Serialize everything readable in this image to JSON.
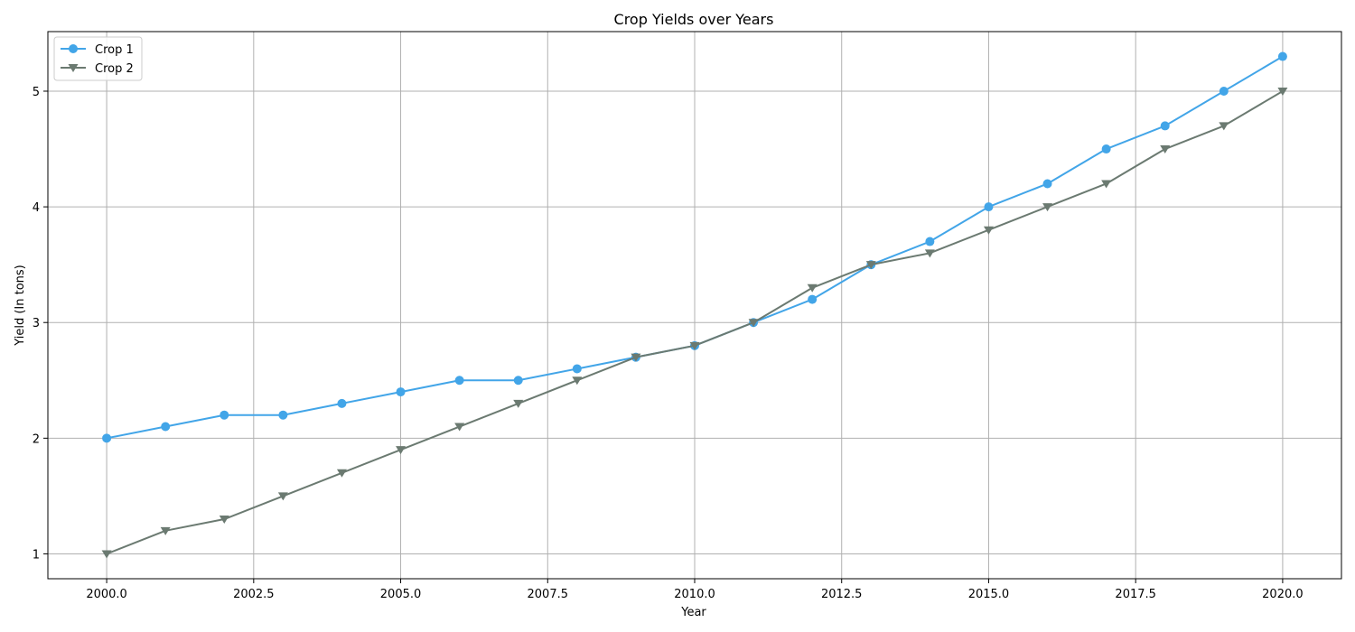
{
  "chart_data": {
    "type": "line",
    "title": "Crop Yields over Years",
    "xlabel": "Year",
    "ylabel": "Yield (In tons)",
    "x": [
      2000,
      2001,
      2002,
      2003,
      2004,
      2005,
      2006,
      2007,
      2008,
      2009,
      2010,
      2011,
      2012,
      2013,
      2014,
      2015,
      2016,
      2017,
      2018,
      2019,
      2020
    ],
    "series": [
      {
        "name": "Crop 1",
        "color": "#42a5e8",
        "marker": "circle",
        "values": [
          2.0,
          2.1,
          2.2,
          2.2,
          2.3,
          2.4,
          2.5,
          2.5,
          2.6,
          2.7,
          2.8,
          3.0,
          3.2,
          3.5,
          3.7,
          4.0,
          4.2,
          4.5,
          4.7,
          5.0,
          5.3
        ]
      },
      {
        "name": "Crop 2",
        "color": "#6b7a71",
        "marker": "triangle-down",
        "values": [
          1.0,
          1.2,
          1.3,
          1.5,
          1.7,
          1.9,
          2.1,
          2.3,
          2.5,
          2.7,
          2.8,
          3.0,
          3.3,
          3.5,
          3.6,
          3.8,
          4.0,
          4.2,
          4.5,
          4.7,
          5.0
        ]
      }
    ],
    "xlim": [
      1999.0,
      2021.0
    ],
    "ylim": [
      0.785,
      5.515
    ],
    "xticks": [
      2000.0,
      2002.5,
      2005.0,
      2007.5,
      2010.0,
      2012.5,
      2015.0,
      2017.5,
      2020.0
    ],
    "xtick_labels": [
      "2000.0",
      "2002.5",
      "2005.0",
      "2007.5",
      "2010.0",
      "2012.5",
      "2015.0",
      "2017.5",
      "2020.0"
    ],
    "yticks": [
      1,
      2,
      3,
      4,
      5
    ],
    "ytick_labels": [
      "1",
      "2",
      "3",
      "4",
      "5"
    ],
    "grid": true,
    "legend_position": "top-left"
  }
}
